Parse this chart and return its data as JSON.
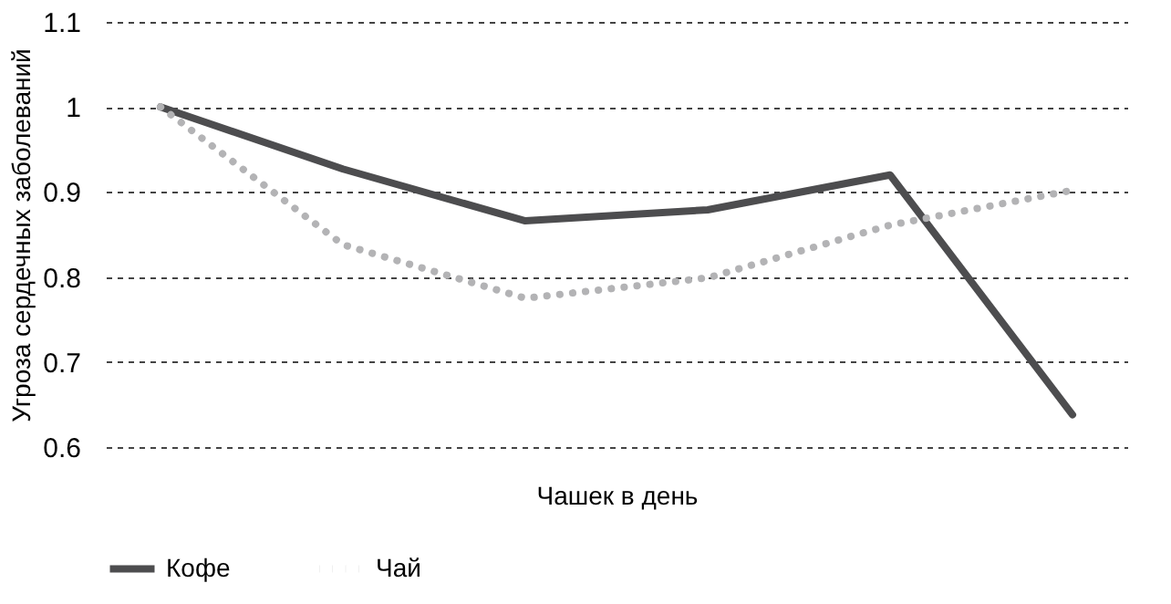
{
  "chart_data": {
    "type": "line",
    "xlabel": "Чашек в день",
    "ylabel": "Угроза сердечных заболеваний",
    "categories": [
      null,
      null,
      null,
      null,
      null,
      null
    ],
    "series": [
      {
        "name": "Кофе",
        "color": "#4d4d4f",
        "line_style": "solid",
        "values": [
          1.0,
          0.927,
          0.866,
          0.879,
          0.92,
          0.638
        ]
      },
      {
        "name": "Чай",
        "color": "#b3b3b5",
        "line_style": "dotted",
        "values": [
          1.0,
          0.838,
          0.775,
          0.799,
          0.861,
          0.902
        ]
      }
    ],
    "ylim": [
      0.6,
      1.1
    ],
    "yticks": [
      0.6,
      0.7,
      0.8,
      0.9,
      1,
      1.1
    ],
    "grid": "y",
    "legend": "bottom",
    "marker": "none",
    "tick_labels": "y"
  }
}
